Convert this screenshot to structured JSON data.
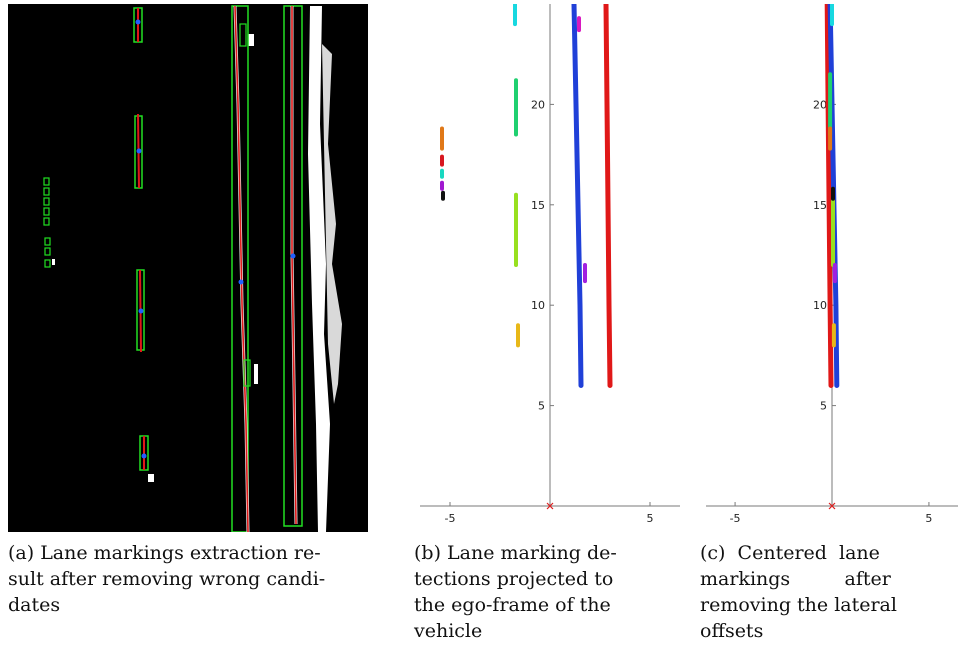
{
  "figure": {
    "panels": [
      {
        "id": "a",
        "caption_lines": [
          "(a) Lane markings extraction re-",
          "sult after removing wrong candi-",
          "dates"
        ]
      },
      {
        "id": "b",
        "caption_lines": [
          "(b) Lane marking de-",
          "tections projected to",
          "the ego-frame of the",
          "vehicle"
        ],
        "chart_data": {
          "type": "scatter",
          "title": "",
          "xlabel": "",
          "ylabel": "",
          "xlim": [
            -6.5,
            6.5
          ],
          "ylim": [
            0,
            25
          ],
          "x_ticks": [
            -5,
            5
          ],
          "y_ticks": [
            5,
            10,
            15,
            20
          ],
          "x_tick_labels": [
            "-5",
            "5"
          ],
          "y_tick_labels": [
            "5",
            "10",
            "15",
            "20"
          ],
          "origin_marker": [
            0,
            0
          ],
          "series": [
            {
              "color": "#2040d8",
              "points": [
                [
                  1.2,
                  25
                ],
                [
                  1.3,
                  20
                ],
                [
                  1.4,
                  15
                ],
                [
                  1.5,
                  10
                ],
                [
                  1.55,
                  6
                ]
              ]
            },
            {
              "color": "#e01818",
              "points": [
                [
                  2.8,
                  25
                ],
                [
                  2.85,
                  20
                ],
                [
                  2.9,
                  15
                ],
                [
                  2.95,
                  10
                ],
                [
                  3.0,
                  6
                ]
              ]
            },
            {
              "color": "#18d8e0",
              "points": [
                [
                  -1.75,
                  25
                ],
                [
                  -1.75,
                  24
                ]
              ]
            },
            {
              "color": "#20d070",
              "points": [
                [
                  -1.7,
                  21.2
                ],
                [
                  -1.7,
                  18.5
                ]
              ]
            },
            {
              "color": "#98e020",
              "points": [
                [
                  -1.7,
                  15.5
                ],
                [
                  -1.7,
                  12
                ]
              ]
            },
            {
              "color": "#e8b818",
              "points": [
                [
                  -1.6,
                  9
                ],
                [
                  -1.6,
                  8
                ]
              ]
            },
            {
              "color": "#d818c0",
              "points": [
                [
                  1.45,
                  24.3
                ],
                [
                  1.45,
                  23.7
                ]
              ]
            },
            {
              "color": "#a020e0",
              "points": [
                [
                  1.75,
                  12
                ],
                [
                  1.75,
                  11.2
                ]
              ]
            },
            {
              "color": "#e07818",
              "points": [
                [
                  -5.4,
                  18.8
                ],
                [
                  -5.4,
                  17.8
                ]
              ]
            },
            {
              "color": "#d81820",
              "points": [
                [
                  -5.4,
                  17.4
                ],
                [
                  -5.4,
                  17
                ]
              ]
            },
            {
              "color": "#18d8c0",
              "points": [
                [
                  -5.4,
                  16.7
                ],
                [
                  -5.4,
                  16.4
                ]
              ]
            },
            {
              "color": "#a018d0",
              "points": [
                [
                  -5.4,
                  16.1
                ],
                [
                  -5.4,
                  15.8
                ]
              ]
            },
            {
              "color": "#101010",
              "points": [
                [
                  -5.35,
                  15.6
                ],
                [
                  -5.35,
                  15.3
                ]
              ]
            }
          ]
        }
      },
      {
        "id": "c",
        "caption_lines": [
          "(c)  Centered  lane",
          "markings         after",
          "removing the lateral",
          "offsets"
        ],
        "chart_data": {
          "type": "scatter",
          "title": "",
          "xlabel": "",
          "ylabel": "",
          "xlim": [
            -6.5,
            6.5
          ],
          "ylim": [
            0,
            25
          ],
          "x_ticks": [
            -5,
            5
          ],
          "y_ticks": [
            5,
            10,
            15,
            20
          ],
          "x_tick_labels": [
            "-5",
            "5"
          ],
          "y_tick_labels": [
            "5",
            "10",
            "15",
            "20"
          ],
          "origin_marker": [
            0,
            0
          ],
          "series": [
            {
              "color": "#e01818",
              "points": [
                [
                  -0.25,
                  25
                ],
                [
                  -0.2,
                  20
                ],
                [
                  -0.15,
                  15
                ],
                [
                  -0.1,
                  10
                ],
                [
                  -0.05,
                  6
                ]
              ]
            },
            {
              "color": "#2040d8",
              "points": [
                [
                  -0.1,
                  25
                ],
                [
                  0.0,
                  20
                ],
                [
                  0.1,
                  15
                ],
                [
                  0.2,
                  10
                ],
                [
                  0.25,
                  6
                ]
              ]
            },
            {
              "color": "#20d070",
              "points": [
                [
                  -0.1,
                  21.5
                ],
                [
                  -0.1,
                  18.5
                ]
              ]
            },
            {
              "color": "#98e020",
              "points": [
                [
                  0.05,
                  15.5
                ],
                [
                  0.05,
                  12
                ]
              ]
            },
            {
              "color": "#e8b818",
              "points": [
                [
                  0.1,
                  9
                ],
                [
                  0.1,
                  8
                ]
              ]
            },
            {
              "color": "#18d8e0",
              "points": [
                [
                  0.0,
                  25
                ],
                [
                  0.0,
                  24
                ]
              ]
            },
            {
              "color": "#a020e0",
              "points": [
                [
                  0.15,
                  12
                ],
                [
                  0.15,
                  11.2
                ]
              ]
            },
            {
              "color": "#e07818",
              "points": [
                [
                  -0.1,
                  18.8
                ],
                [
                  -0.1,
                  17.8
                ]
              ]
            },
            {
              "color": "#101010",
              "points": [
                [
                  0.05,
                  15.8
                ],
                [
                  0.05,
                  15.3
                ]
              ]
            }
          ]
        }
      }
    ]
  }
}
